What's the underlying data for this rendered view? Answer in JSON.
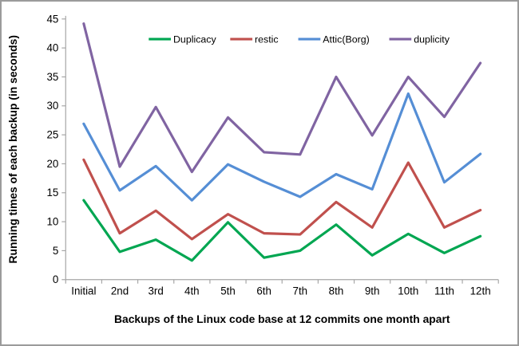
{
  "chart_data": {
    "type": "line",
    "title": "",
    "xlabel": "Backups of the Linux code base at 12 commits one month apart",
    "ylabel": "Running times of each backup  (in seconds)",
    "ylim": [
      0,
      45
    ],
    "y_ticks": [
      0,
      5,
      10,
      15,
      20,
      25,
      30,
      35,
      40,
      45
    ],
    "grid": false,
    "legend_position": "top-center",
    "categories": [
      "Initial",
      "2nd",
      "3rd",
      "4th",
      "5th",
      "6th",
      "7th",
      "8th",
      "9th",
      "10th",
      "11th",
      "12th"
    ],
    "series": [
      {
        "name": "Duplicacy",
        "color": "#00A651",
        "values": [
          13.7,
          4.8,
          6.9,
          3.3,
          9.9,
          3.8,
          5.0,
          9.5,
          4.2,
          7.9,
          4.6,
          7.5
        ]
      },
      {
        "name": "restic",
        "color": "#C0504D",
        "values": [
          20.7,
          8.0,
          11.9,
          7.0,
          11.3,
          8.0,
          7.8,
          13.4,
          9.0,
          20.2,
          9.0,
          12.0
        ]
      },
      {
        "name": "Attic(Borg)",
        "color": "#558ED5",
        "values": [
          26.9,
          15.4,
          19.6,
          13.7,
          19.9,
          16.9,
          14.3,
          18.2,
          15.6,
          32.1,
          16.8,
          21.7
        ]
      },
      {
        "name": "duplicity",
        "color": "#8064A2",
        "values": [
          44.2,
          19.5,
          29.8,
          18.6,
          28.0,
          22.0,
          21.6,
          35.0,
          24.9,
          35.0,
          28.1,
          37.4
        ]
      }
    ],
    "axis_color": "#A6A6A6",
    "text_color": "#000000",
    "background_color": "#FFFFFF"
  }
}
